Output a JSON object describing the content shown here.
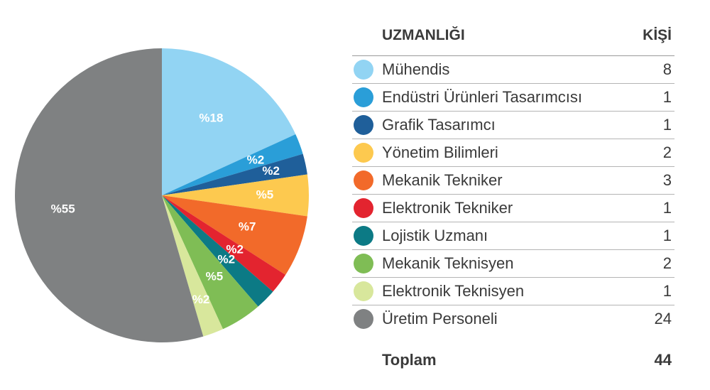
{
  "chart_data": {
    "type": "pie",
    "header": {
      "category": "UZMANLIĞI",
      "count": "KİŞİ"
    },
    "slices": [
      {
        "label": "Mühendis",
        "value": 8,
        "pct_label": "%18",
        "color": "#92d4f3"
      },
      {
        "label": "Endüstri Ürünleri Tasarımcısı",
        "value": 1,
        "pct_label": "%2",
        "color": "#2a9ed8"
      },
      {
        "label": "Grafik Tasarımcı",
        "value": 1,
        "pct_label": "%2",
        "color": "#1f5f9a"
      },
      {
        "label": "Yönetim Bilimleri",
        "value": 2,
        "pct_label": "%5",
        "color": "#fdc94f"
      },
      {
        "label": "Mekanik Tekniker",
        "value": 3,
        "pct_label": "%7",
        "color": "#f26a2a"
      },
      {
        "label": "Elektronik Tekniker",
        "value": 1,
        "pct_label": "%2",
        "color": "#e3242f"
      },
      {
        "label": "Lojistik Uzmanı",
        "value": 1,
        "pct_label": "%2",
        "color": "#0c7a85"
      },
      {
        "label": "Mekanik Teknisyen",
        "value": 2,
        "pct_label": "%5",
        "color": "#7fbd55"
      },
      {
        "label": "Elektronik Teknisyen",
        "value": 1,
        "pct_label": "%2",
        "color": "#d8e79c"
      },
      {
        "label": "Üretim Personeli",
        "value": 24,
        "pct_label": "%55",
        "color": "#7f8182"
      }
    ],
    "total": {
      "label": "Toplam",
      "value": "44"
    }
  }
}
